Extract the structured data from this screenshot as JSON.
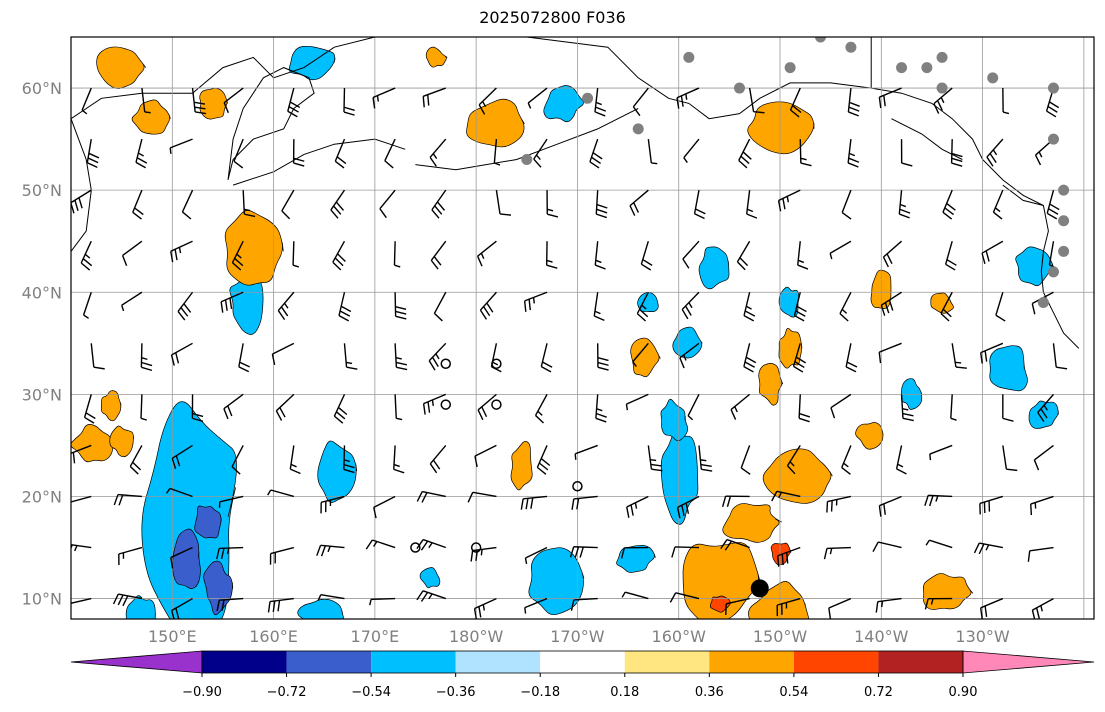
{
  "title": "2025072800 F036",
  "map": {
    "projection": "PlateCarree",
    "lon_range": [
      140,
      241
    ],
    "lat_range": [
      8,
      65
    ],
    "lon_ticks": [
      {
        "lon": 150,
        "label": "150°E"
      },
      {
        "lon": 160,
        "label": "160°E"
      },
      {
        "lon": 170,
        "label": "170°E"
      },
      {
        "lon": 180,
        "label": "180°W"
      },
      {
        "lon": 190,
        "label": "170°W"
      },
      {
        "lon": 200,
        "label": "160°W"
      },
      {
        "lon": 210,
        "label": "150°W"
      },
      {
        "lon": 220,
        "label": "140°W"
      },
      {
        "lon": 230,
        "label": "130°W"
      }
    ],
    "lat_ticks": [
      {
        "lat": 10,
        "label": "10°N"
      },
      {
        "lat": 20,
        "label": "20°N"
      },
      {
        "lat": 30,
        "label": "30°N"
      },
      {
        "lat": 40,
        "label": "40°N"
      },
      {
        "lat": 50,
        "label": "50°N"
      },
      {
        "lat": 60,
        "label": "60°N"
      }
    ]
  },
  "colorbar": {
    "levels": [
      "−0.90",
      "−0.72",
      "−0.54",
      "−0.36",
      "−0.18",
      "0.18",
      "0.36",
      "0.54",
      "0.72",
      "0.90"
    ],
    "colors": [
      "#9932cc",
      "#00008b",
      "#3a5fcd",
      "#00bfff",
      "#afe3ff",
      "#ffffff",
      "#ffe680",
      "#ffa500",
      "#ff4500",
      "#b22222",
      "#ff88b8"
    ]
  },
  "blobs_pos": [
    [
      158,
      44,
      3,
      4
    ],
    [
      142,
      25,
      2,
      2
    ],
    [
      184.5,
      23,
      1.2,
      2.5
    ],
    [
      196.5,
      33.5,
      1.5,
      2
    ],
    [
      211,
      34.5,
      1.2,
      2
    ],
    [
      209,
      31,
      1.2,
      2
    ],
    [
      220,
      40,
      1.3,
      2
    ],
    [
      226,
      39,
      1.2,
      1
    ],
    [
      204,
      11.5,
      4,
      5
    ],
    [
      210,
      9,
      3,
      3
    ],
    [
      207,
      17.5,
      3,
      2
    ],
    [
      212,
      22,
      3.5,
      2.5
    ],
    [
      226.5,
      10.5,
      2.5,
      2
    ],
    [
      210,
      56,
      3.5,
      2.5
    ],
    [
      182,
      56.5,
      3,
      2.5
    ],
    [
      145,
      62,
      2.5,
      2.5
    ],
    [
      148,
      57,
      2,
      2
    ],
    [
      154,
      58.5,
      1.5,
      1.5
    ],
    [
      176,
      63,
      1,
      1
    ],
    [
      145,
      25.5,
      1.2,
      1.5
    ],
    [
      144,
      29,
      1,
      1.5
    ],
    [
      219,
      26,
      1.5,
      1.5
    ]
  ],
  "blobs_neg": [
    [
      152,
      18,
      5,
      12
    ],
    [
      147,
      8,
      1.5,
      2.5
    ],
    [
      166,
      22.5,
      2,
      3
    ],
    [
      157.5,
      39,
      2,
      3
    ],
    [
      188,
      12,
      3,
      3.5
    ],
    [
      200,
      22,
      2,
      4.5
    ],
    [
      199.5,
      27.5,
      1.5,
      2
    ],
    [
      195.5,
      14,
      2,
      1.5
    ],
    [
      204,
      14,
      1.5,
      1
    ],
    [
      203.5,
      42.5,
      1.5,
      2.5
    ],
    [
      211,
      39,
      1,
      1.5
    ],
    [
      232.5,
      32.5,
      2,
      2.5
    ],
    [
      236,
      28,
      1.5,
      1.5
    ],
    [
      235,
      42.5,
      2,
      2
    ],
    [
      223,
      30,
      1,
      1.5
    ],
    [
      165,
      8.5,
      2.5,
      2
    ],
    [
      188.5,
      58.5,
      2,
      1.8
    ],
    [
      164,
      62.5,
      2.5,
      2
    ],
    [
      201,
      35,
      1.5,
      1.5
    ],
    [
      197,
      39,
      1,
      1
    ],
    [
      175.5,
      12,
      1,
      1
    ]
  ],
  "blobs_strong_neg": [
    [
      151.5,
      14,
      1.5,
      3
    ],
    [
      153.5,
      17.5,
      1.5,
      2
    ],
    [
      154.5,
      11,
      1.5,
      2.5
    ]
  ],
  "blobs_strong_pos": [
    [
      210,
      14.5,
      1,
      1.2
    ],
    [
      204,
      9.5,
      1,
      0.8
    ]
  ],
  "stations": [
    [
      185,
      53
    ],
    [
      198,
      66
    ],
    [
      201,
      63
    ],
    [
      196,
      56
    ],
    [
      211,
      62
    ],
    [
      214,
      65
    ],
    [
      210,
      66
    ],
    [
      217,
      64
    ],
    [
      222,
      62
    ],
    [
      224.5,
      62
    ],
    [
      226,
      63
    ],
    [
      231,
      61
    ],
    [
      237,
      60
    ],
    [
      237,
      55
    ],
    [
      238,
      50
    ],
    [
      238,
      47
    ],
    [
      238,
      44
    ],
    [
      237,
      42
    ],
    [
      236,
      39
    ],
    [
      226,
      60
    ],
    [
      206,
      60
    ],
    [
      191,
      59
    ]
  ],
  "calm_circles": [
    [
      177,
      33
    ],
    [
      182,
      33
    ],
    [
      174,
      15
    ],
    [
      180,
      15
    ],
    [
      177,
      29
    ],
    [
      182,
      29
    ],
    [
      190,
      21
    ]
  ],
  "big_dot": [
    208,
    11
  ]
}
